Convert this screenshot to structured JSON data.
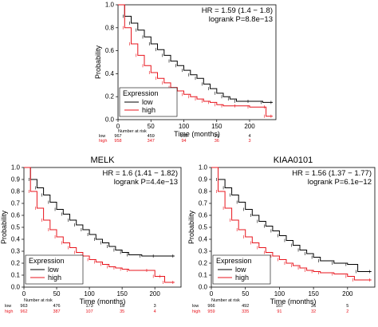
{
  "colors": {
    "low": "#000000",
    "high": "#e8141c"
  },
  "chart_data": [
    {
      "type": "line",
      "title": "",
      "hr_text": "HR = 1.59 (1.4 − 1.8)",
      "logrank_text": "logrank P=8.8e−13",
      "xlabel": "Time (months)",
      "ylabel": "Probability",
      "xlim": [
        0,
        240
      ],
      "ylim": [
        0,
        1
      ],
      "x_ticks": [
        "0",
        "50",
        "100",
        "150",
        "200"
      ],
      "y_ticks": [
        "0.0",
        "0.2",
        "0.4",
        "0.6",
        "0.8",
        "1.0"
      ],
      "grid": false,
      "legend": {
        "title": "Expression",
        "position": "bottom-left"
      },
      "series": [
        {
          "name": "low",
          "points": [
            [
              0,
              1.0
            ],
            [
              10,
              0.9
            ],
            [
              20,
              0.84
            ],
            [
              30,
              0.78
            ],
            [
              40,
              0.72
            ],
            [
              50,
              0.66
            ],
            [
              60,
              0.61
            ],
            [
              70,
              0.56
            ],
            [
              80,
              0.51
            ],
            [
              90,
              0.47
            ],
            [
              100,
              0.43
            ],
            [
              110,
              0.39
            ],
            [
              120,
              0.36
            ],
            [
              130,
              0.31
            ],
            [
              140,
              0.27
            ],
            [
              150,
              0.23
            ],
            [
              160,
              0.2
            ],
            [
              170,
              0.18
            ],
            [
              180,
              0.16
            ],
            [
              200,
              0.16
            ],
            [
              220,
              0.15
            ],
            [
              235,
              0.15
            ]
          ]
        },
        {
          "name": "high",
          "points": [
            [
              0,
              1.0
            ],
            [
              10,
              0.8
            ],
            [
              20,
              0.66
            ],
            [
              30,
              0.56
            ],
            [
              40,
              0.47
            ],
            [
              50,
              0.41
            ],
            [
              60,
              0.36
            ],
            [
              70,
              0.32
            ],
            [
              80,
              0.28
            ],
            [
              90,
              0.25
            ],
            [
              100,
              0.22
            ],
            [
              110,
              0.2
            ],
            [
              120,
              0.18
            ],
            [
              130,
              0.16
            ],
            [
              140,
              0.15
            ],
            [
              150,
              0.13
            ],
            [
              160,
              0.12
            ],
            [
              180,
              0.12
            ],
            [
              200,
              0.11
            ],
            [
              225,
              0.11
            ],
            [
              225,
              0.03
            ],
            [
              235,
              0.03
            ]
          ]
        }
      ],
      "risk_table": {
        "header": "Number at risk",
        "times": [
          0,
          50,
          100,
          150,
          200
        ],
        "rows": [
          {
            "label": "low",
            "values": [
              "967",
              "459",
              "169",
              "21",
              "4"
            ]
          },
          {
            "label": "high",
            "values": [
              "958",
              "347",
              "94",
              "36",
              "3"
            ]
          }
        ]
      }
    },
    {
      "type": "line",
      "title": "MELK",
      "hr_text": "HR = 1.6 (1.41 − 1.82)",
      "logrank_text": "logrank P=4.4e−13",
      "xlabel": "Time (months)",
      "ylabel": "Probability",
      "xlim": [
        0,
        240
      ],
      "ylim": [
        0,
        1
      ],
      "x_ticks": [
        "0",
        "50",
        "100",
        "150",
        "200"
      ],
      "y_ticks": [
        "0.0",
        "0.1",
        "0.2",
        "0.3",
        "0.4",
        "0.5",
        "0.6",
        "0.7",
        "0.8",
        "0.9",
        "1.0"
      ],
      "grid": false,
      "legend": {
        "title": "Expression",
        "position": "bottom-left"
      },
      "series": [
        {
          "name": "low",
          "points": [
            [
              0,
              1.0
            ],
            [
              10,
              0.9
            ],
            [
              20,
              0.83
            ],
            [
              30,
              0.77
            ],
            [
              40,
              0.71
            ],
            [
              50,
              0.65
            ],
            [
              60,
              0.61
            ],
            [
              70,
              0.56
            ],
            [
              80,
              0.52
            ],
            [
              90,
              0.48
            ],
            [
              100,
              0.44
            ],
            [
              110,
              0.4
            ],
            [
              120,
              0.37
            ],
            [
              130,
              0.34
            ],
            [
              140,
              0.31
            ],
            [
              150,
              0.29
            ],
            [
              160,
              0.27
            ],
            [
              180,
              0.26
            ],
            [
              200,
              0.26
            ],
            [
              230,
              0.26
            ]
          ]
        },
        {
          "name": "high",
          "points": [
            [
              0,
              1.0
            ],
            [
              10,
              0.8
            ],
            [
              20,
              0.66
            ],
            [
              30,
              0.56
            ],
            [
              40,
              0.48
            ],
            [
              50,
              0.42
            ],
            [
              60,
              0.37
            ],
            [
              70,
              0.33
            ],
            [
              80,
              0.29
            ],
            [
              90,
              0.26
            ],
            [
              100,
              0.23
            ],
            [
              110,
              0.21
            ],
            [
              120,
              0.19
            ],
            [
              130,
              0.17
            ],
            [
              140,
              0.16
            ],
            [
              150,
              0.15
            ],
            [
              160,
              0.14
            ],
            [
              190,
              0.14
            ],
            [
              200,
              0.09
            ],
            [
              210,
              0.09
            ],
            [
              215,
              0.04
            ],
            [
              230,
              0.04
            ]
          ]
        }
      ],
      "risk_table": {
        "header": "Number at risk",
        "times": [
          0,
          50,
          100,
          150,
          200
        ],
        "rows": [
          {
            "label": "low",
            "values": [
              "963",
              "476",
              "173",
              "18",
              "3"
            ]
          },
          {
            "label": "high",
            "values": [
              "962",
              "387",
              "107",
              "35",
              "4"
            ]
          }
        ]
      }
    },
    {
      "type": "line",
      "title": "KIAA0101",
      "hr_text": "HR = 1.56 (1.37 − 1.77)",
      "logrank_text": "logrank P=6.1e−12",
      "xlabel": "Time (months)",
      "ylabel": "Probability",
      "xlim": [
        0,
        240
      ],
      "ylim": [
        0,
        1
      ],
      "x_ticks": [
        "0",
        "50",
        "100",
        "150",
        "200"
      ],
      "y_ticks": [
        "0.0",
        "0.1",
        "0.2",
        "0.3",
        "0.4",
        "0.5",
        "0.6",
        "0.7",
        "0.8",
        "0.9",
        "1.0"
      ],
      "grid": false,
      "legend": {
        "title": "Expression",
        "position": "bottom-left"
      },
      "series": [
        {
          "name": "low",
          "points": [
            [
              0,
              1.0
            ],
            [
              10,
              0.9
            ],
            [
              20,
              0.83
            ],
            [
              30,
              0.77
            ],
            [
              40,
              0.71
            ],
            [
              50,
              0.65
            ],
            [
              60,
              0.6
            ],
            [
              70,
              0.55
            ],
            [
              80,
              0.51
            ],
            [
              90,
              0.47
            ],
            [
              100,
              0.43
            ],
            [
              110,
              0.39
            ],
            [
              120,
              0.35
            ],
            [
              130,
              0.31
            ],
            [
              140,
              0.28
            ],
            [
              150,
              0.25
            ],
            [
              160,
              0.22
            ],
            [
              180,
              0.2
            ],
            [
              200,
              0.19
            ],
            [
              215,
              0.13
            ],
            [
              235,
              0.13
            ]
          ]
        },
        {
          "name": "high",
          "points": [
            [
              0,
              1.0
            ],
            [
              10,
              0.8
            ],
            [
              20,
              0.66
            ],
            [
              30,
              0.56
            ],
            [
              40,
              0.48
            ],
            [
              50,
              0.42
            ],
            [
              60,
              0.37
            ],
            [
              70,
              0.33
            ],
            [
              80,
              0.29
            ],
            [
              90,
              0.26
            ],
            [
              100,
              0.23
            ],
            [
              110,
              0.2
            ],
            [
              120,
              0.18
            ],
            [
              130,
              0.16
            ],
            [
              140,
              0.14
            ],
            [
              150,
              0.13
            ],
            [
              160,
              0.12
            ],
            [
              180,
              0.11
            ],
            [
              200,
              0.09
            ],
            [
              210,
              0.06
            ],
            [
              235,
              0.06
            ]
          ]
        }
      ],
      "risk_table": {
        "header": "Number at risk",
        "times": [
          0,
          50,
          100,
          150,
          200
        ],
        "rows": [
          {
            "label": "low",
            "values": [
              "966",
              "492",
              "167",
              "26",
              "5"
            ]
          },
          {
            "label": "high",
            "values": [
              "959",
              "335",
              "91",
              "32",
              "2"
            ]
          }
        ]
      }
    }
  ]
}
